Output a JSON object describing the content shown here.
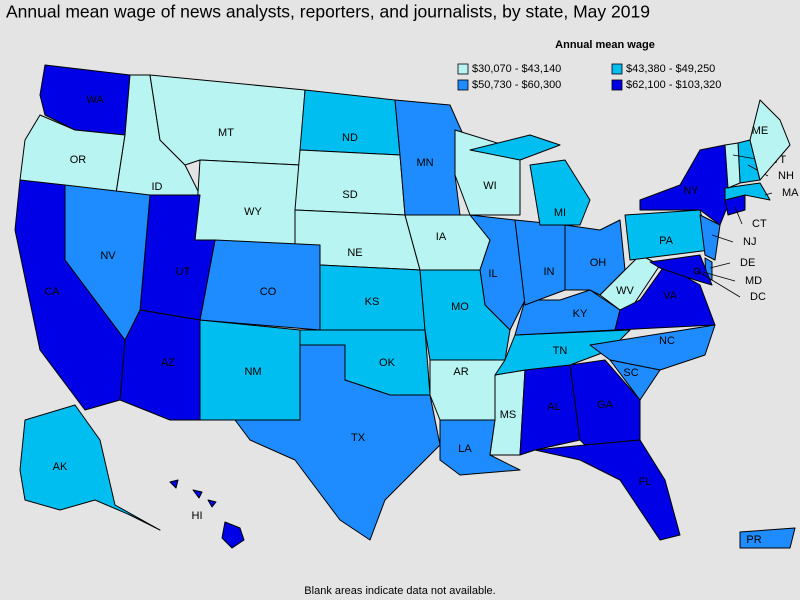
{
  "title": "Annual mean wage of news analysts, reporters, and journalists, by state, May 2019",
  "legend": {
    "title": "Annual mean wage",
    "items": [
      {
        "label": "$30,070 - $43,140",
        "color": "#b8f4f2"
      },
      {
        "label": "$43,380 - $49,250",
        "color": "#00bff0"
      },
      {
        "label": "$50,730 - $60,300",
        "color": "#1e8cff"
      },
      {
        "label": "$62,100 - $103,320",
        "color": "#0000e6"
      }
    ]
  },
  "states": [
    {
      "label": "WA",
      "range": 3
    },
    {
      "label": "OR",
      "range": 0
    },
    {
      "label": "ID",
      "range": 0
    },
    {
      "label": "MT",
      "range": 0
    },
    {
      "label": "WY",
      "range": 0
    },
    {
      "label": "ND",
      "range": 1
    },
    {
      "label": "SD",
      "range": 0
    },
    {
      "label": "NE",
      "range": 0
    },
    {
      "label": "KS",
      "range": 1
    },
    {
      "label": "OK",
      "range": 1
    },
    {
      "label": "TX",
      "range": 2
    },
    {
      "label": "NM",
      "range": 1
    },
    {
      "label": "CO",
      "range": 2
    },
    {
      "label": "UT",
      "range": 3
    },
    {
      "label": "AZ",
      "range": 3
    },
    {
      "label": "NV",
      "range": 2
    },
    {
      "label": "CA",
      "range": 3
    },
    {
      "label": "MN",
      "range": 2
    },
    {
      "label": "IA",
      "range": 0
    },
    {
      "label": "WI",
      "range": 0
    },
    {
      "label": "IL",
      "range": 2
    },
    {
      "label": "MO",
      "range": 1
    },
    {
      "label": "AR",
      "range": 0
    },
    {
      "label": "LA",
      "range": 2
    },
    {
      "label": "MS",
      "range": 0
    },
    {
      "label": "AL",
      "range": 3
    },
    {
      "label": "GA",
      "range": 3
    },
    {
      "label": "FL",
      "range": 3
    },
    {
      "label": "TN",
      "range": 1
    },
    {
      "label": "KY",
      "range": 2
    },
    {
      "label": "IN",
      "range": 2
    },
    {
      "label": "OH",
      "range": 2
    },
    {
      "label": "MI",
      "range": 1
    },
    {
      "label": "WV",
      "range": 0
    },
    {
      "label": "VA",
      "range": 3
    },
    {
      "label": "NC",
      "range": 2
    },
    {
      "label": "SC",
      "range": 2
    },
    {
      "label": "PA",
      "range": 1
    },
    {
      "label": "NY",
      "range": 3
    },
    {
      "label": "NJ",
      "range": 2
    },
    {
      "label": "DE",
      "range": 2
    },
    {
      "label": "MD",
      "range": 3
    },
    {
      "label": "DC",
      "range": 3
    },
    {
      "label": "CT",
      "range": 3
    },
    {
      "label": "MA",
      "range": 1
    },
    {
      "label": "NH",
      "range": 1
    },
    {
      "label": "VT",
      "range": 0
    },
    {
      "label": "ME",
      "range": 0
    },
    {
      "label": "AK",
      "range": 1
    },
    {
      "label": "HI",
      "range": 3
    },
    {
      "label": "PR",
      "range": 2
    }
  ],
  "note": "Blank areas indicate data not available."
}
